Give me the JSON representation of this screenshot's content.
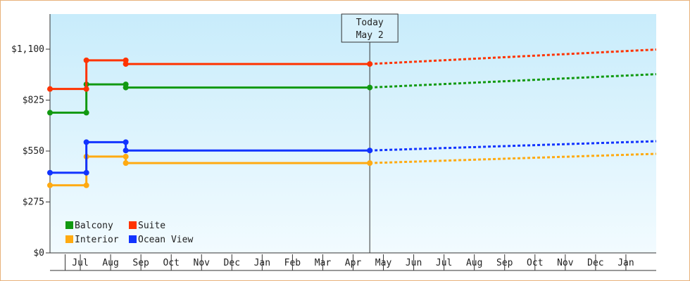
{
  "chart_data": {
    "type": "line",
    "title": "",
    "xlabel": "",
    "ylabel": "",
    "y_ticks": [
      "$0",
      "$275",
      "$550",
      "$825",
      "$1,100"
    ],
    "y_tick_values": [
      0,
      275,
      550,
      825,
      1100
    ],
    "ylim": [
      0,
      1100
    ],
    "x_months": [
      "Jul",
      "Aug",
      "Sep",
      "Oct",
      "Nov",
      "Dec",
      "Jan",
      "Feb",
      "Mar",
      "Apr",
      "May",
      "Jun",
      "Jul",
      "Aug",
      "Sep",
      "Oct",
      "Nov",
      "Dec",
      "Jan"
    ],
    "x_range_months": [
      -0.5,
      19.5
    ],
    "today": {
      "line1": "Today",
      "line2": "May 2",
      "month_index": 10.05
    },
    "grid": false,
    "legend_position": "bottom-left",
    "series": [
      {
        "name": "Balcony",
        "color": "#119911",
        "history": [
          [
            -0.5,
            757
          ],
          [
            0.7,
            757
          ],
          [
            0.7,
            910
          ],
          [
            2.0,
            910
          ],
          [
            2.0,
            893
          ],
          [
            10.05,
            893
          ]
        ],
        "markers": [
          [
            -0.5,
            757
          ],
          [
            0.7,
            757
          ],
          [
            0.7,
            910
          ],
          [
            2.0,
            910
          ],
          [
            2.0,
            893
          ],
          [
            10.05,
            893
          ]
        ],
        "forecast": [
          [
            10.05,
            893
          ],
          [
            19.5,
            965
          ]
        ]
      },
      {
        "name": "Suite",
        "color": "#ff3300",
        "history": [
          [
            -0.5,
            885
          ],
          [
            0.7,
            885
          ],
          [
            0.7,
            1040
          ],
          [
            2.0,
            1040
          ],
          [
            2.0,
            1020
          ],
          [
            10.05,
            1020
          ]
        ],
        "markers": [
          [
            -0.5,
            885
          ],
          [
            0.7,
            885
          ],
          [
            0.7,
            1040
          ],
          [
            2.0,
            1040
          ],
          [
            2.0,
            1020
          ],
          [
            10.05,
            1020
          ]
        ],
        "forecast": [
          [
            10.05,
            1020
          ],
          [
            19.5,
            1098
          ]
        ]
      },
      {
        "name": "Interior",
        "color": "#ffaa11",
        "history": [
          [
            -0.5,
            365
          ],
          [
            0.7,
            365
          ],
          [
            0.7,
            520
          ],
          [
            2.0,
            520
          ],
          [
            2.0,
            485
          ],
          [
            10.05,
            485
          ]
        ],
        "markers": [
          [
            -0.5,
            365
          ],
          [
            0.7,
            365
          ],
          [
            0.7,
            520
          ],
          [
            2.0,
            520
          ],
          [
            2.0,
            485
          ],
          [
            10.05,
            485
          ]
        ],
        "forecast": [
          [
            10.05,
            485
          ],
          [
            19.5,
            535
          ]
        ]
      },
      {
        "name": "Ocean View",
        "color": "#1133ff",
        "history": [
          [
            -0.5,
            433
          ],
          [
            0.7,
            433
          ],
          [
            0.7,
            598
          ],
          [
            2.0,
            598
          ],
          [
            2.0,
            553
          ],
          [
            10.05,
            553
          ]
        ],
        "markers": [
          [
            -0.5,
            433
          ],
          [
            0.7,
            433
          ],
          [
            0.7,
            598
          ],
          [
            2.0,
            598
          ],
          [
            2.0,
            553
          ],
          [
            10.05,
            553
          ]
        ],
        "forecast": [
          [
            10.05,
            553
          ],
          [
            19.5,
            603
          ]
        ]
      }
    ]
  }
}
